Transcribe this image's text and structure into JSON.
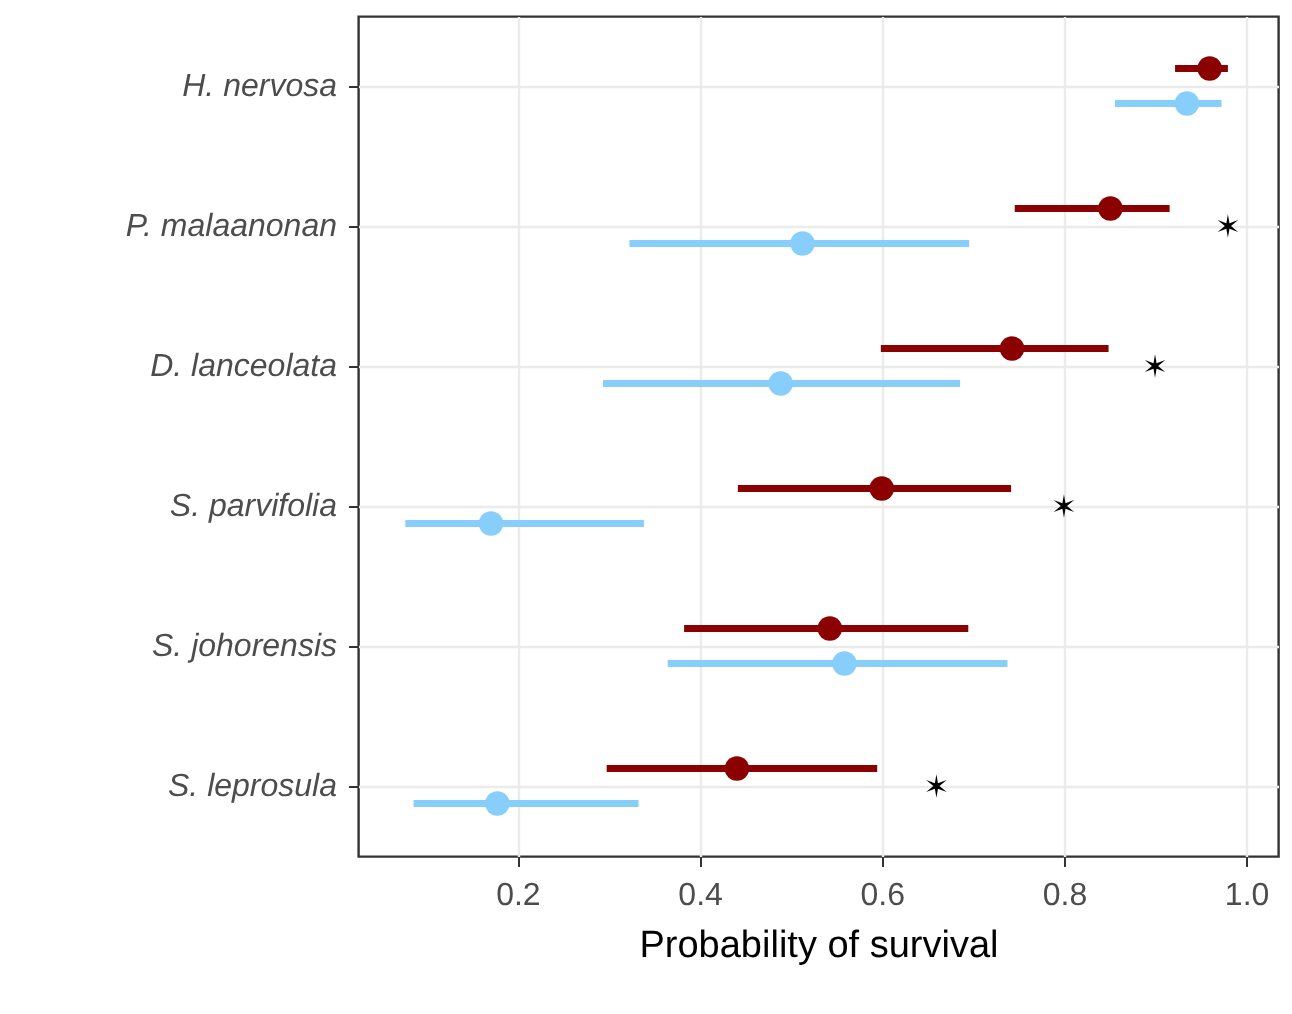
{
  "chart_data": {
    "type": "scatter",
    "xlabel": "Probability of survival",
    "categories": [
      "H. nervosa",
      "P. malaanonan",
      "D. lanceolata",
      "S. parvifolia",
      "S. johorensis",
      "S. leprosula"
    ],
    "series": [
      {
        "color": "#8b0000",
        "values": [
          0.96,
          0.851,
          0.743,
          0.6,
          0.543,
          0.441
        ],
        "errors": [
          [
            0.922,
            0.98
          ],
          [
            0.746,
            0.916
          ],
          [
            0.599,
            0.849
          ],
          [
            0.442,
            0.742
          ],
          [
            0.383,
            0.695
          ],
          [
            0.298,
            0.595
          ]
        ]
      },
      {
        "color": "#87cefa",
        "values": [
          0.935,
          0.513,
          0.489,
          0.171,
          0.559,
          0.178
        ],
        "errors": [
          [
            0.856,
            0.973
          ],
          [
            0.323,
            0.696
          ],
          [
            0.294,
            0.686
          ],
          [
            0.077,
            0.339
          ],
          [
            0.365,
            0.738
          ],
          [
            0.086,
            0.333
          ]
        ]
      },
      {
        "color": "#000000",
        "marker": "cross",
        "values": [
          null,
          0.98,
          0.9,
          0.8,
          null,
          0.66
        ]
      }
    ],
    "orientation": "horizontal",
    "xlim": [
      0.025,
      1.035
    ],
    "xticks": [
      0.2,
      0.4,
      0.6,
      0.8,
      {
        "value": 1,
        "label": "1.0"
      }
    ],
    "grid": true,
    "marker": "circle"
  }
}
